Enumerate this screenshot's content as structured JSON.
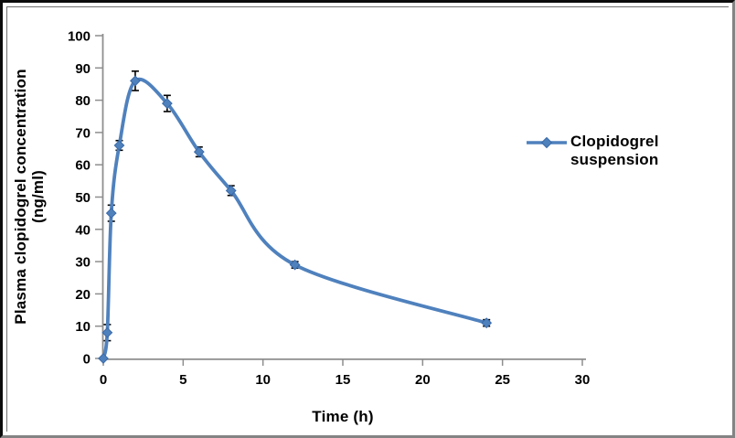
{
  "figure": {
    "y_axis_title_line1": "Plasma clopidogrel concentration",
    "y_axis_title_line2": "(ng/ml)",
    "x_axis_title": "Time (h)",
    "legend": {
      "label_line1": "Clopidogrel",
      "label_line2": "suspension"
    }
  },
  "chart_data": {
    "type": "line",
    "title": "",
    "xlabel": "Time (h)",
    "ylabel": "Plasma clopidogrel concentration (ng/ml)",
    "xlim": [
      0,
      30
    ],
    "ylim": [
      0,
      100
    ],
    "x_ticks": [
      0,
      5,
      10,
      15,
      20,
      25,
      30
    ],
    "y_ticks": [
      0,
      10,
      20,
      30,
      40,
      50,
      60,
      70,
      80,
      90,
      100
    ],
    "grid": false,
    "legend_position": "right",
    "series": [
      {
        "name": "Clopidogrel suspension",
        "x": [
          0,
          0.25,
          0.5,
          1,
          2,
          4,
          6,
          8,
          12,
          24
        ],
        "y": [
          0,
          8,
          45,
          66,
          86,
          79,
          64,
          52,
          29,
          11
        ],
        "y_err": [
          0,
          2.5,
          2.5,
          1.5,
          3,
          2.5,
          1.5,
          1.5,
          1,
          1
        ],
        "marker": "diamond",
        "line_style": "smooth",
        "color": "#4f81bd"
      }
    ]
  },
  "style": {
    "accent_color": "#4f81bd",
    "marker_edge_color": "#3a6aa8",
    "axis_color": "#8e8e8e",
    "error_bar_color": "#000000",
    "text_color": "#000000",
    "background": "#ffffff"
  }
}
